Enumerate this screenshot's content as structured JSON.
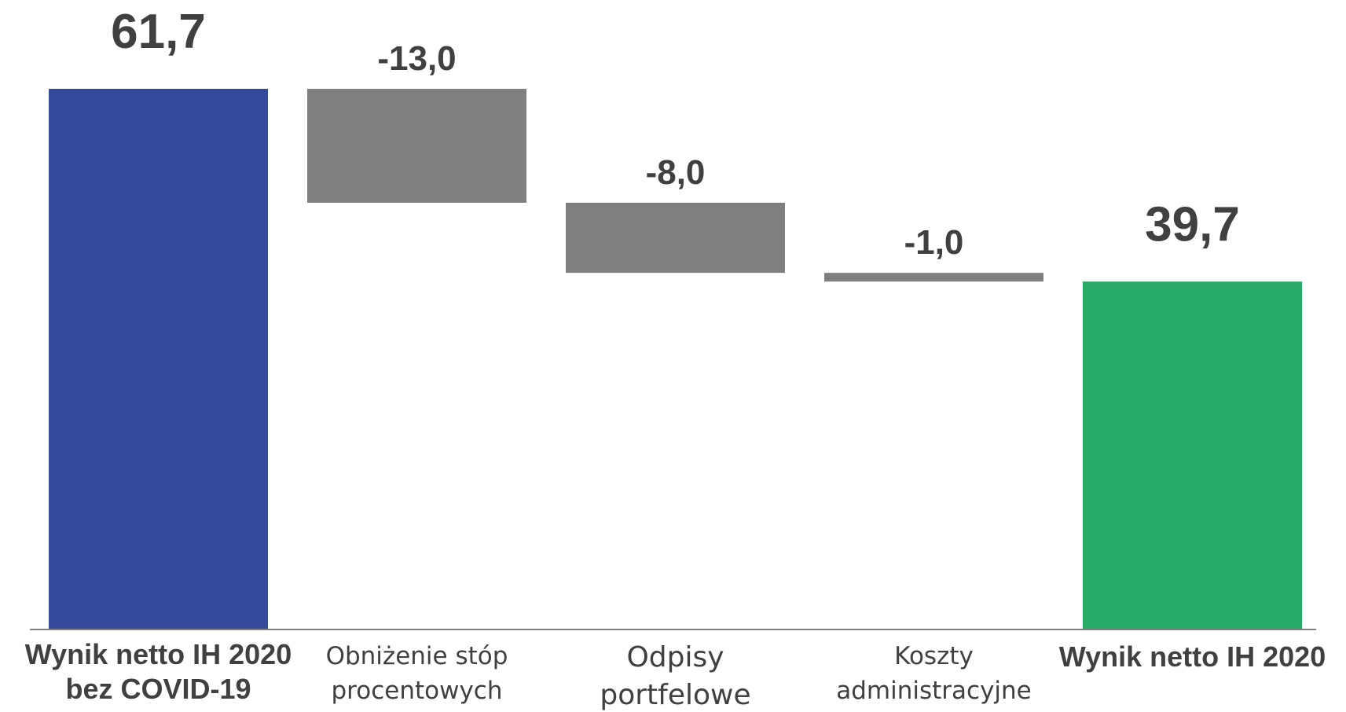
{
  "chart_data": {
    "type": "bar",
    "subtype": "waterfall",
    "categories": [
      [
        "Wynik netto IH 2020",
        "bez COVID-19"
      ],
      [
        "Obniżenie stóp",
        "procentowych"
      ],
      [
        "Odpisy",
        "portfelowe"
      ],
      [
        "Koszty",
        "administracyjne"
      ],
      [
        "Wynik netto IH 2020"
      ]
    ],
    "values": [
      61.7,
      -13.0,
      -8.0,
      -1.0,
      39.7
    ],
    "value_labels": [
      "61,7",
      "-13,0",
      "-8,0",
      "-1,0",
      "39,7"
    ],
    "bar_kinds": [
      "total",
      "delta",
      "delta",
      "delta",
      "total"
    ],
    "bold_categories": [
      true,
      false,
      false,
      false,
      true
    ],
    "colors": {
      "start_total": "#354A9A",
      "delta": "#7F7F7F",
      "end_total": "#27AB67",
      "axis": "#808080",
      "text": "#404040"
    },
    "title": "",
    "xlabel": "",
    "ylabel": "",
    "ylim": [
      0,
      61.7
    ],
    "grid": false,
    "legend": "none"
  }
}
